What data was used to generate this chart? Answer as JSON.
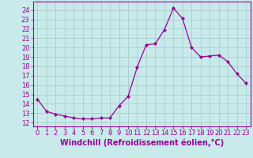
{
  "x": [
    0,
    1,
    2,
    3,
    4,
    5,
    6,
    7,
    8,
    9,
    10,
    11,
    12,
    13,
    14,
    15,
    16,
    17,
    18,
    19,
    20,
    21,
    22,
    23
  ],
  "y": [
    14.5,
    13.2,
    12.9,
    12.7,
    12.5,
    12.4,
    12.4,
    12.5,
    12.5,
    13.8,
    14.8,
    17.9,
    20.3,
    20.4,
    21.9,
    24.2,
    23.1,
    20.0,
    19.0,
    19.1,
    19.2,
    18.5,
    17.2,
    16.2
  ],
  "line_color": "#990099",
  "marker": "D",
  "marker_size": 2.0,
  "bg_color": "#c8eaea",
  "grid_color": "#a8cccc",
  "xlabel": "Windchill (Refroidissement éolien,°C)",
  "xlabel_fontsize": 7.0,
  "xlabel_color": "#990099",
  "tick_color": "#990099",
  "ylabel_ticks": [
    12,
    13,
    14,
    15,
    16,
    17,
    18,
    19,
    20,
    21,
    22,
    23,
    24
  ],
  "ylim": [
    11.6,
    24.9
  ],
  "xlim": [
    -0.5,
    23.5
  ],
  "xtick_labels": [
    "0",
    "1",
    "2",
    "3",
    "4",
    "5",
    "6",
    "7",
    "8",
    "9",
    "10",
    "11",
    "12",
    "13",
    "14",
    "15",
    "16",
    "17",
    "18",
    "19",
    "20",
    "21",
    "22",
    "23"
  ],
  "tick_fontsize": 6.0
}
